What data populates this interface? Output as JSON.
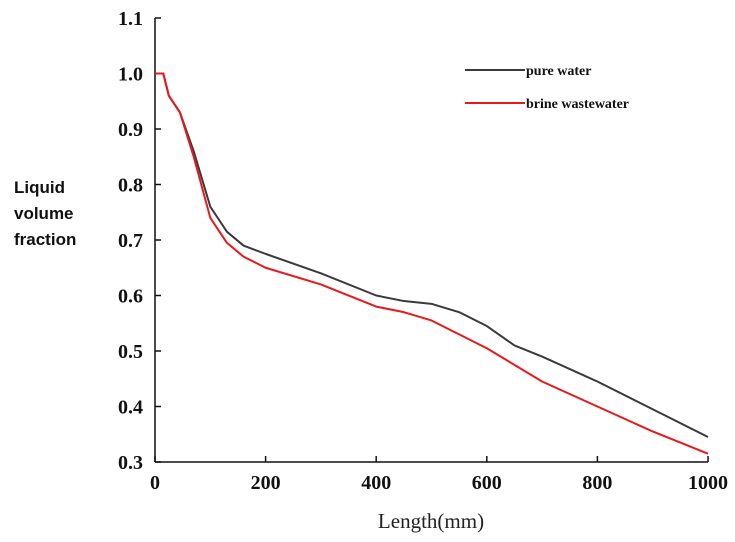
{
  "chart_data": {
    "type": "line",
    "xlabel": "Length(mm)",
    "ylabel": "Liquid volume fraction",
    "x": [
      0,
      15,
      25,
      45,
      70,
      100,
      130,
      160,
      200,
      300,
      400,
      450,
      500,
      550,
      600,
      650,
      700,
      800,
      900,
      1000
    ],
    "series": [
      {
        "name": "pure water",
        "color": "#3a3a3a",
        "values": [
          1.0,
          1.0,
          0.96,
          0.93,
          0.86,
          0.76,
          0.715,
          0.69,
          0.675,
          0.64,
          0.6,
          0.59,
          0.585,
          0.57,
          0.545,
          0.51,
          0.49,
          0.445,
          0.395,
          0.345
        ]
      },
      {
        "name": "brine wastewater",
        "color": "#e8191c",
        "values": [
          1.0,
          1.0,
          0.96,
          0.93,
          0.85,
          0.74,
          0.695,
          0.67,
          0.65,
          0.62,
          0.58,
          0.57,
          0.555,
          0.53,
          0.505,
          0.475,
          0.445,
          0.4,
          0.355,
          0.315
        ]
      }
    ],
    "xlim": [
      0,
      1000
    ],
    "xticks": [
      0,
      200,
      400,
      600,
      800,
      1000
    ],
    "ylim": [
      0.3,
      1.1
    ],
    "yticks": [
      0.3,
      0.4,
      0.5,
      0.6,
      0.7,
      0.8,
      0.9,
      {
        "value": 1,
        "label": "1.0"
      },
      1.1
    ]
  }
}
